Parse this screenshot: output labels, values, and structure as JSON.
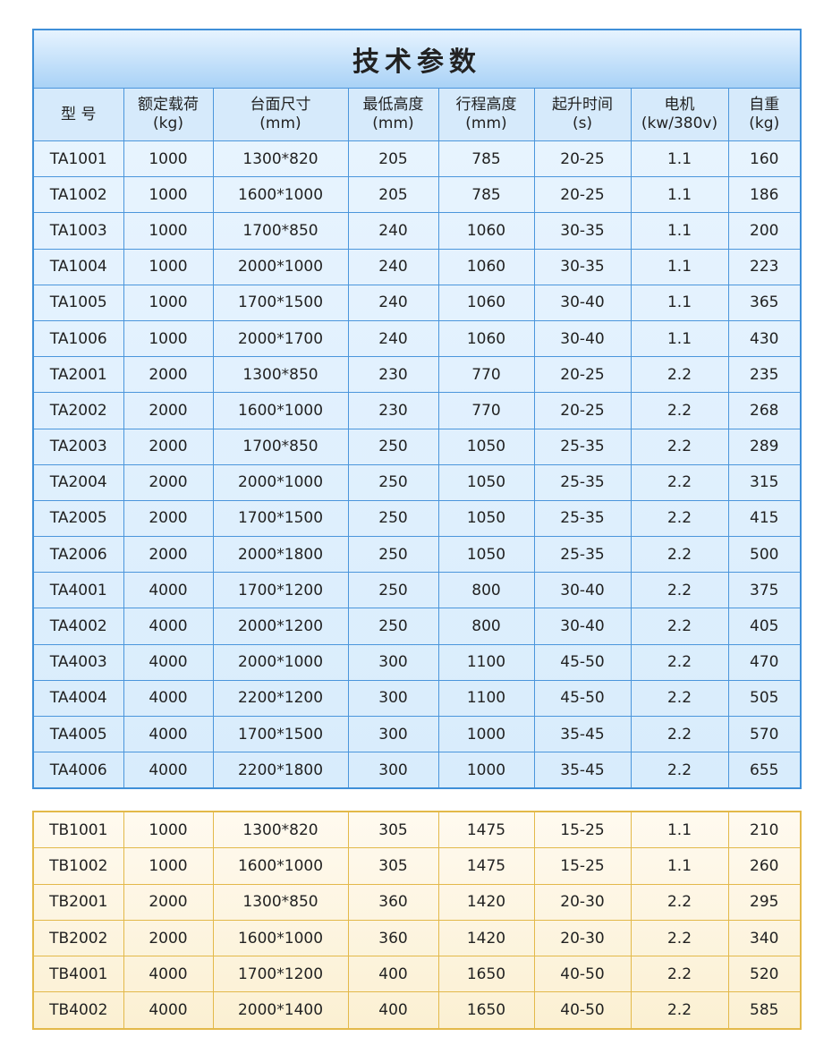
{
  "title": "技术参数",
  "header": [
    [
      "型 号"
    ],
    [
      "额定载荷",
      "(kg)"
    ],
    [
      "台面尺寸",
      "(mm)"
    ],
    [
      "最低高度",
      "(mm)"
    ],
    [
      "行程高度",
      "(mm)"
    ],
    [
      "起升时间",
      "(s)"
    ],
    [
      "电机",
      "(kw/380v)"
    ],
    [
      "自重",
      "(kg)"
    ]
  ],
  "table_a": {
    "rows": [
      [
        "TA1001",
        "1000",
        "1300*820",
        "205",
        "785",
        "20-25",
        "1.1",
        "160"
      ],
      [
        "TA1002",
        "1000",
        "1600*1000",
        "205",
        "785",
        "20-25",
        "1.1",
        "186"
      ],
      [
        "TA1003",
        "1000",
        "1700*850",
        "240",
        "1060",
        "30-35",
        "1.1",
        "200"
      ],
      [
        "TA1004",
        "1000",
        "2000*1000",
        "240",
        "1060",
        "30-35",
        "1.1",
        "223"
      ],
      [
        "TA1005",
        "1000",
        "1700*1500",
        "240",
        "1060",
        "30-40",
        "1.1",
        "365"
      ],
      [
        "TA1006",
        "1000",
        "2000*1700",
        "240",
        "1060",
        "30-40",
        "1.1",
        "430"
      ],
      [
        "TA2001",
        "2000",
        "1300*850",
        "230",
        "770",
        "20-25",
        "2.2",
        "235"
      ],
      [
        "TA2002",
        "2000",
        "1600*1000",
        "230",
        "770",
        "20-25",
        "2.2",
        "268"
      ],
      [
        "TA2003",
        "2000",
        "1700*850",
        "250",
        "1050",
        "25-35",
        "2.2",
        "289"
      ],
      [
        "TA2004",
        "2000",
        "2000*1000",
        "250",
        "1050",
        "25-35",
        "2.2",
        "315"
      ],
      [
        "TA2005",
        "2000",
        "1700*1500",
        "250",
        "1050",
        "25-35",
        "2.2",
        "415"
      ],
      [
        "TA2006",
        "2000",
        "2000*1800",
        "250",
        "1050",
        "25-35",
        "2.2",
        "500"
      ],
      [
        "TA4001",
        "4000",
        "1700*1200",
        "250",
        "800",
        "30-40",
        "2.2",
        "375"
      ],
      [
        "TA4002",
        "4000",
        "2000*1200",
        "250",
        "800",
        "30-40",
        "2.2",
        "405"
      ],
      [
        "TA4003",
        "4000",
        "2000*1000",
        "300",
        "1100",
        "45-50",
        "2.2",
        "470"
      ],
      [
        "TA4004",
        "4000",
        "2200*1200",
        "300",
        "1100",
        "45-50",
        "2.2",
        "505"
      ],
      [
        "TA4005",
        "4000",
        "1700*1500",
        "300",
        "1000",
        "35-45",
        "2.2",
        "570"
      ],
      [
        "TA4006",
        "4000",
        "2200*1800",
        "300",
        "1000",
        "35-45",
        "2.2",
        "655"
      ]
    ]
  },
  "table_b": {
    "rows": [
      [
        "TB1001",
        "1000",
        "1300*820",
        "305",
        "1475",
        "15-25",
        "1.1",
        "210"
      ],
      [
        "TB1002",
        "1000",
        "1600*1000",
        "305",
        "1475",
        "15-25",
        "1.1",
        "260"
      ],
      [
        "TB2001",
        "2000",
        "1300*850",
        "360",
        "1420",
        "20-30",
        "2.2",
        "295"
      ],
      [
        "TB2002",
        "2000",
        "1600*1000",
        "360",
        "1420",
        "20-30",
        "2.2",
        "340"
      ],
      [
        "TB4001",
        "4000",
        "1700*1200",
        "400",
        "1650",
        "40-50",
        "2.2",
        "520"
      ],
      [
        "TB4002",
        "4000",
        "2000*1400",
        "400",
        "1650",
        "40-50",
        "2.2",
        "585"
      ]
    ]
  }
}
